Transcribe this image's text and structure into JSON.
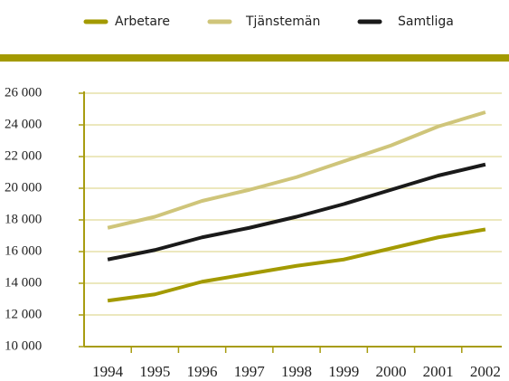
{
  "chart_data": {
    "type": "line",
    "categories": [
      "1994",
      "1995",
      "1996",
      "1997",
      "1998",
      "1999",
      "2000",
      "2001",
      "2002"
    ],
    "series": [
      {
        "name": "Arbetare",
        "color": "#a39a00",
        "values": [
          12900,
          13300,
          14100,
          14600,
          15100,
          15500,
          16200,
          16900,
          17400
        ]
      },
      {
        "name": "Tjänstemän",
        "color": "#cfc57a",
        "values": [
          17500,
          18200,
          19200,
          19900,
          20700,
          21700,
          22700,
          23900,
          24800
        ]
      },
      {
        "name": "Samtliga",
        "color": "#1a1a1a",
        "values": [
          15500,
          16100,
          16900,
          17500,
          18200,
          19000,
          19900,
          20800,
          21500
        ]
      }
    ],
    "ylim": [
      10000,
      26000
    ],
    "yticks": [
      {
        "value": 10000,
        "label": "10 000"
      },
      {
        "value": 12000,
        "label": "12 000"
      },
      {
        "value": 14000,
        "label": "14 000"
      },
      {
        "value": 16000,
        "label": "16 000"
      },
      {
        "value": 18000,
        "label": "18 000"
      },
      {
        "value": 20000,
        "label": "20 000"
      },
      {
        "value": 22000,
        "label": "22 000"
      },
      {
        "value": 24000,
        "label": "24 000"
      },
      {
        "value": 26000,
        "label": "26 000"
      }
    ],
    "grid": true,
    "legend": "top"
  }
}
